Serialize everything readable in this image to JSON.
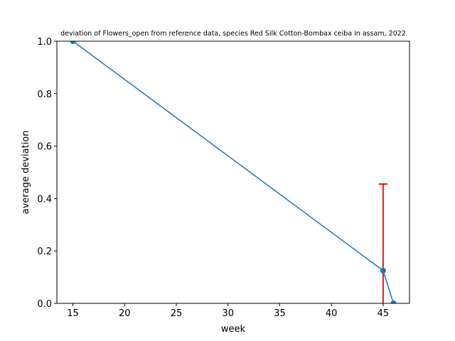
{
  "chart_data": {
    "type": "line",
    "title": "deviation of Flowers_open from reference data, species Red Silk Cotton-Bombax ceiba in assam, 2022",
    "xlabel": "week",
    "ylabel": "average deviation",
    "xlim": [
      13.45,
      47.55
    ],
    "ylim": [
      0,
      1.0
    ],
    "xticks": [
      15,
      20,
      25,
      30,
      35,
      40,
      45
    ],
    "yticks": [
      0.0,
      0.2,
      0.4,
      0.6,
      0.8,
      1.0
    ],
    "xtick_labels": [
      "15",
      "20",
      "25",
      "30",
      "35",
      "40",
      "45"
    ],
    "ytick_labels": [
      "0.0",
      "0.2",
      "0.4",
      "0.6",
      "0.8",
      "1.0"
    ],
    "grid": false,
    "series": [
      {
        "color": "#1f77b4",
        "marker": "circle",
        "x": [
          15,
          45,
          46
        ],
        "y": [
          1.0,
          0.125,
          0.0
        ],
        "yerr": [
          0.0,
          0.33,
          0.0
        ]
      }
    ],
    "errorbar_color": "#ff0000"
  }
}
